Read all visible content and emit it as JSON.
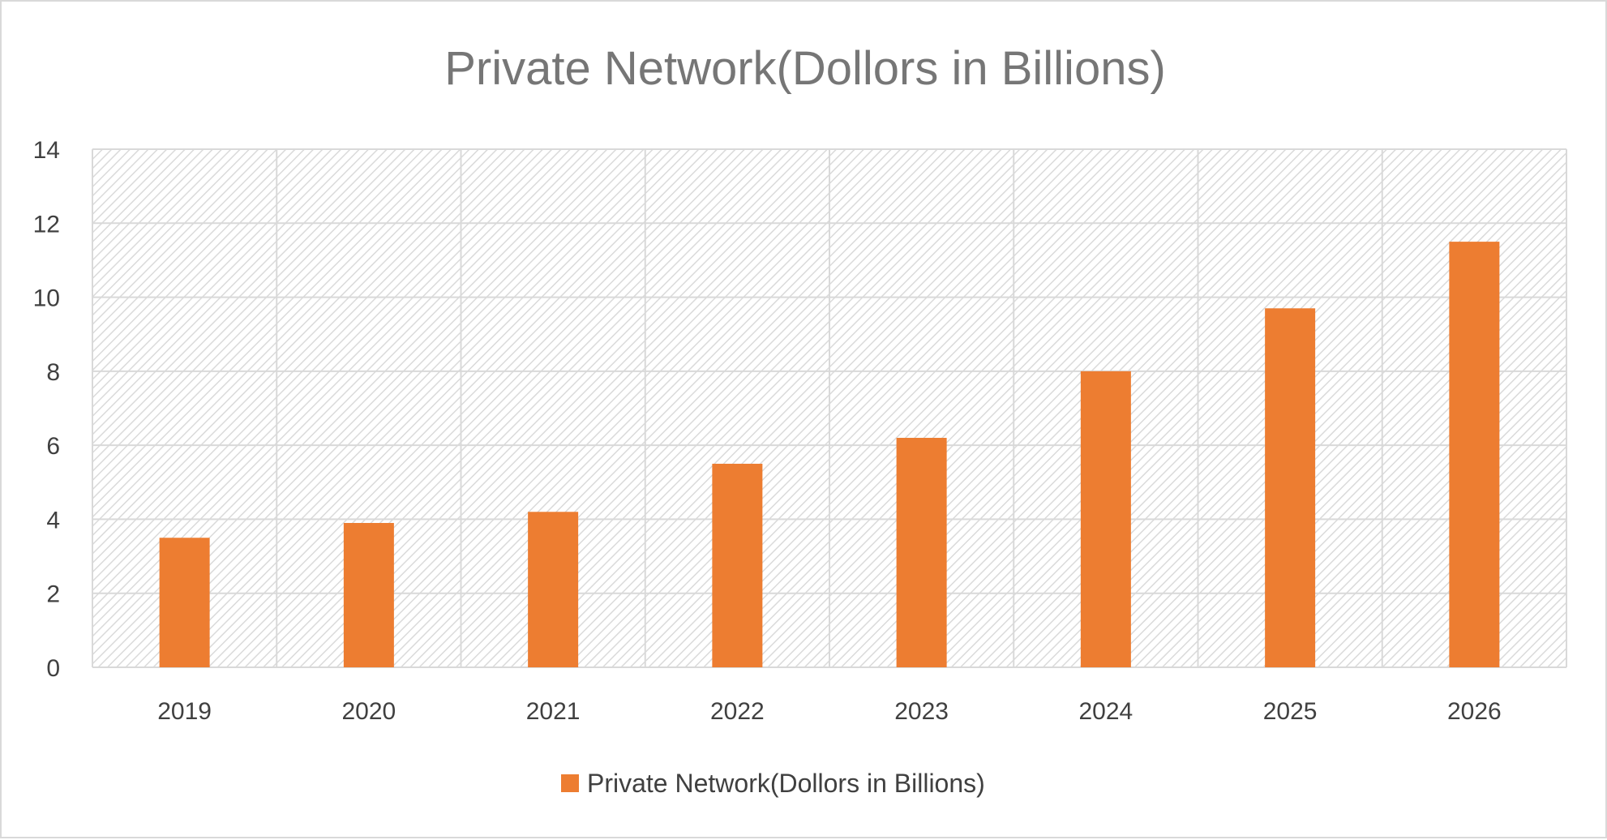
{
  "chart_data": {
    "type": "bar",
    "title": "Private Network(Dollors in Billions)",
    "xlabel": "",
    "ylabel": "",
    "categories": [
      "2019",
      "2020",
      "2021",
      "2022",
      "2023",
      "2024",
      "2025",
      "2026"
    ],
    "series": [
      {
        "name": "Private Network(Dollors in Billions)",
        "values": [
          3.5,
          3.9,
          4.2,
          5.5,
          6.2,
          8.0,
          9.7,
          11.5
        ],
        "color": "#ED7D31"
      }
    ],
    "ylim": [
      0,
      14
    ],
    "yticks": [
      "0",
      "2",
      "4",
      "6",
      "8",
      "10",
      "12",
      "14"
    ],
    "grid": true,
    "plot_background": "diagonal-hatch",
    "legend_position": "bottom",
    "colors": {
      "bar": "#ED7D31",
      "gridline": "#d9d9d9",
      "title": "#767676",
      "text": "#404040"
    }
  }
}
